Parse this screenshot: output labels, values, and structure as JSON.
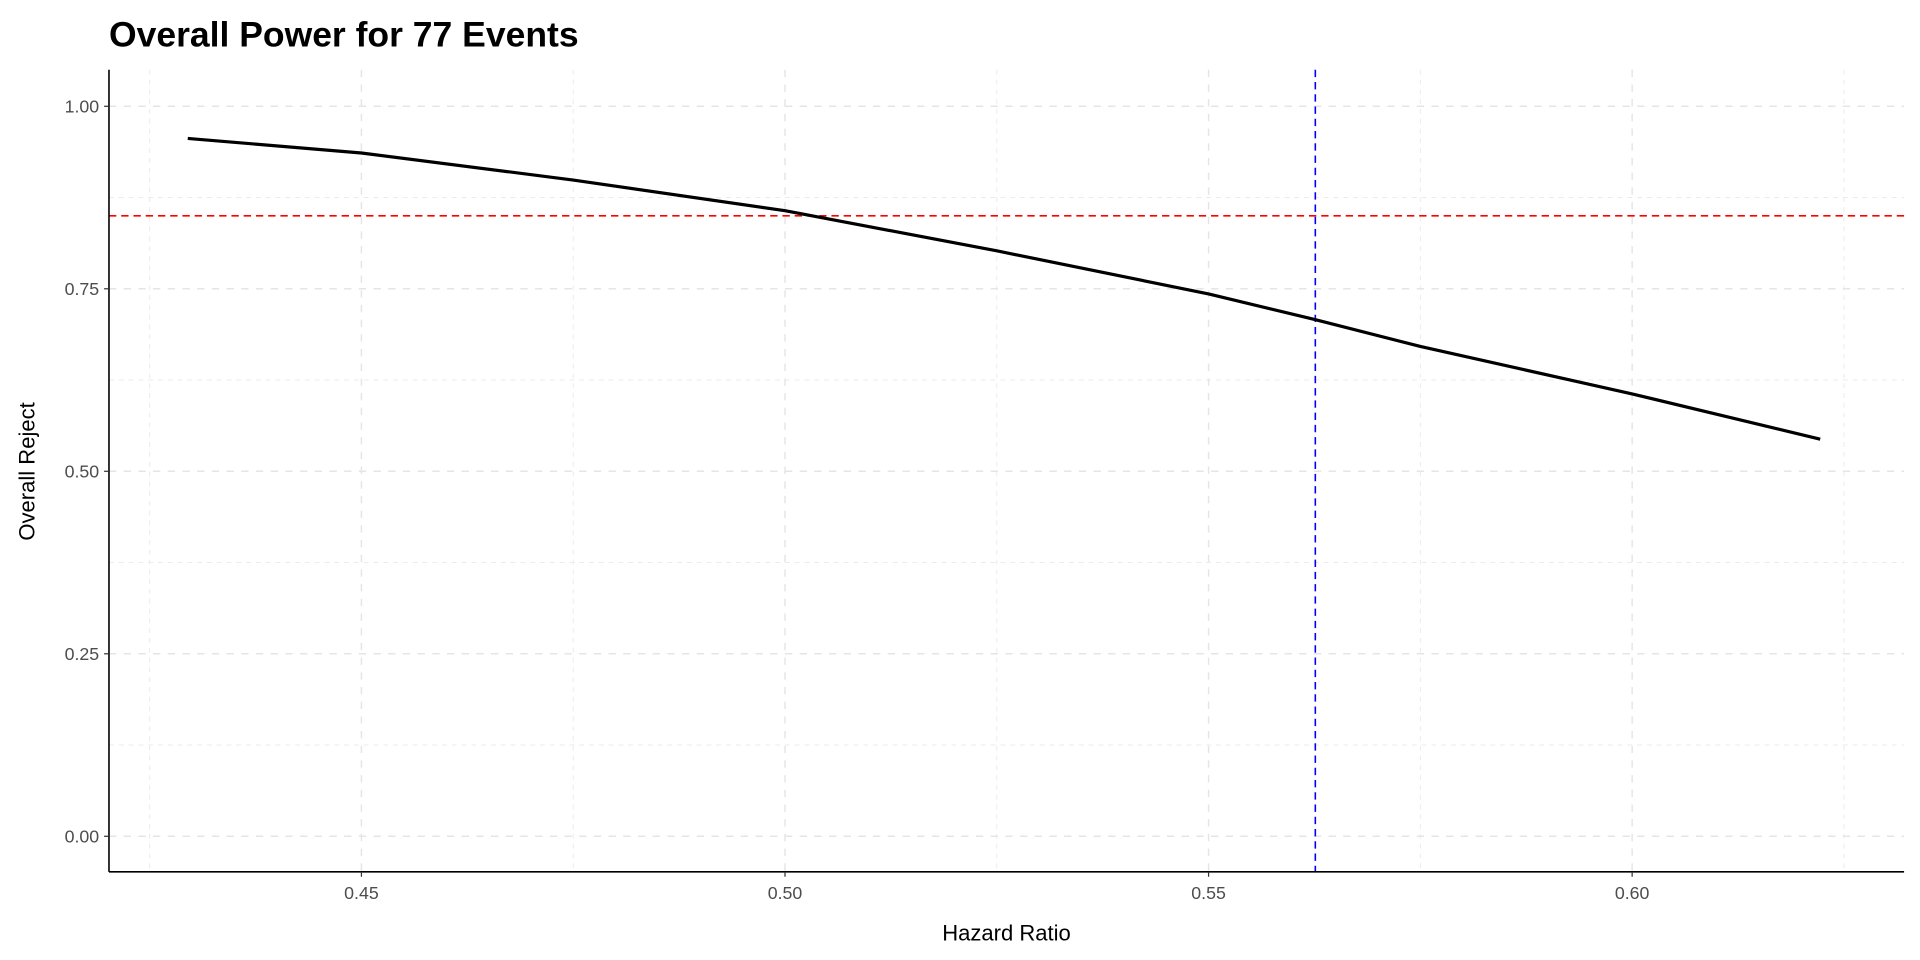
{
  "chart_data": {
    "type": "line",
    "title": "Overall Power for 77 Events",
    "xlabel": "Hazard Ratio",
    "ylabel": "Overall Reject",
    "xlim": [
      0.4202,
      0.6321
    ],
    "ylim": [
      -0.0487,
      1.05
    ],
    "xticks": [
      0.45,
      0.5,
      0.55,
      0.6
    ],
    "xtick_labels": [
      "0.45",
      "0.50",
      "0.55",
      "0.60"
    ],
    "xminor": [
      0.425,
      0.475,
      0.525,
      0.575,
      0.625
    ],
    "yticks": [
      0,
      0.25,
      0.5,
      0.75,
      1.0
    ],
    "ytick_labels": [
      "0.00",
      "0.25",
      "0.50",
      "0.75",
      "1.00"
    ],
    "yminor": [
      0.125,
      0.375,
      0.625,
      0.875
    ],
    "grid": true,
    "series": [
      {
        "name": "Overall Reject",
        "color": "#000000",
        "x": [
          0.4295,
          0.45,
          0.475,
          0.5,
          0.525,
          0.55,
          0.5625,
          0.575,
          0.6,
          0.6222
        ],
        "y": [
          0.956,
          0.936,
          0.899,
          0.857,
          0.802,
          0.743,
          0.708,
          0.671,
          0.606,
          0.544
        ]
      }
    ],
    "reference_lines": [
      {
        "orientation": "horizontal",
        "value": 0.85,
        "color": "#ff0000",
        "style": "dashed"
      },
      {
        "orientation": "vertical",
        "value": 0.5626,
        "color": "#0000ff",
        "style": "dashed"
      }
    ]
  }
}
